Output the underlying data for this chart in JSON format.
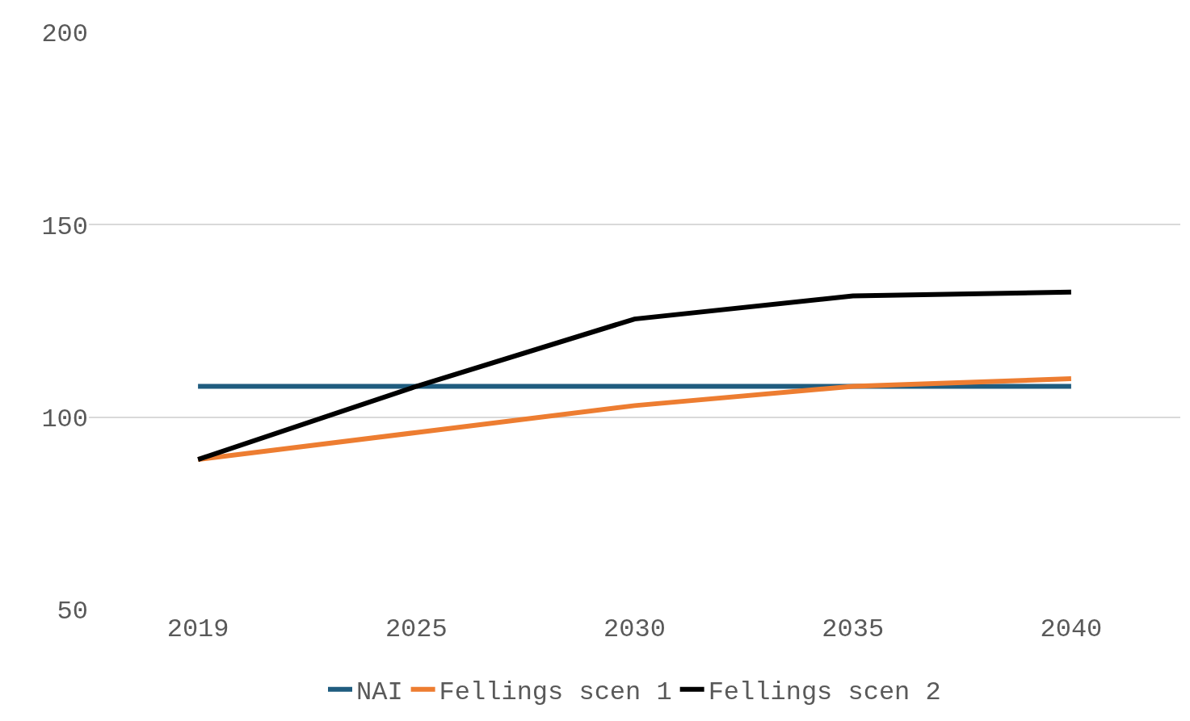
{
  "chart_data": {
    "type": "line",
    "categories": [
      "2019",
      "2025",
      "2030",
      "2035",
      "2040"
    ],
    "series": [
      {
        "name": "NAI",
        "color": "#1f5c7f",
        "values": [
          108,
          108,
          108,
          108,
          108
        ]
      },
      {
        "name": "Fellings scen 1",
        "color": "#ed7d31",
        "values": [
          89,
          96,
          103,
          108,
          110
        ]
      },
      {
        "name": "Fellings scen 2",
        "color": "#000000",
        "values": [
          89,
          108,
          125.5,
          131.5,
          132.5
        ]
      }
    ],
    "ylim": [
      50,
      200
    ],
    "yticks": [
      50,
      100,
      150,
      200
    ],
    "grid": "y",
    "legend": "bottom",
    "marker": "none",
    "line_style": "solid"
  }
}
